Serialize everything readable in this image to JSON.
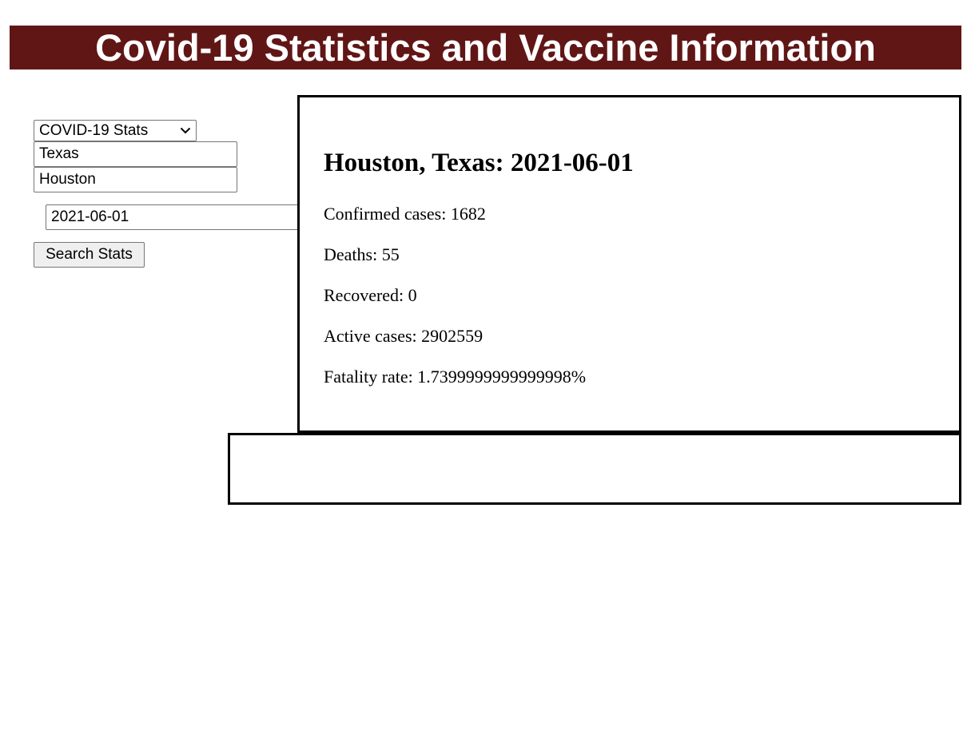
{
  "header": {
    "title": "Covid-19 Statistics and Vaccine Information",
    "bg_color": "#611616"
  },
  "form": {
    "mode_select": {
      "selected": "COVID-19 Stats"
    },
    "state_value": "Texas",
    "city_value": "Houston",
    "date_value": "2021-06-01",
    "search_label": "Search Stats"
  },
  "stats": {
    "heading": "Houston, Texas: 2021-06-01",
    "confirmed": "Confirmed cases: 1682",
    "deaths": "Deaths: 55",
    "recovered": "Recovered: 0",
    "active": "Active cases: 2902559",
    "fatality": "Fatality rate: 1.7399999999999998%"
  }
}
